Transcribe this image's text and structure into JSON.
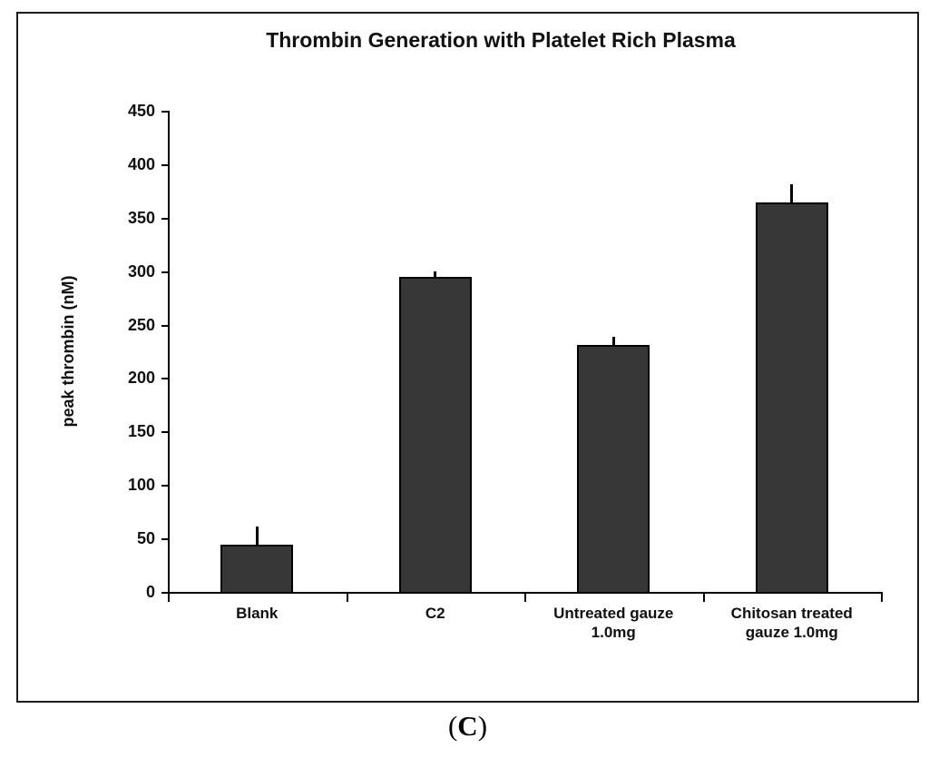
{
  "figure": {
    "caption": {
      "prefix": "(",
      "letter": "C",
      "suffix": ")"
    }
  },
  "chart_data": {
    "type": "bar",
    "title": "Thrombin Generation with Platelet Rich Plasma",
    "xlabel": "",
    "ylabel": "peak thrombin (nM)",
    "ylim": [
      0,
      450
    ],
    "ytick_step": 50,
    "yticks": [
      450,
      400,
      350,
      300,
      250,
      200,
      150,
      100,
      50,
      0
    ],
    "categories": [
      "Blank",
      "C2",
      "Untreated gauze 1.0mg",
      "Chitosan treated gauze 1.0mg"
    ],
    "category_label_lines": [
      [
        "Blank"
      ],
      [
        "C2"
      ],
      [
        "Untreated gauze",
        "1.0mg"
      ],
      [
        "Chitosan treated",
        "gauze 1.0mg"
      ]
    ],
    "values": [
      46,
      296,
      233,
      366
    ],
    "errors": [
      17,
      5,
      7,
      17
    ],
    "grid": false,
    "legend": false,
    "bar_fill": "#373737",
    "bar_border": "#000000",
    "axis_color": "#000000"
  }
}
